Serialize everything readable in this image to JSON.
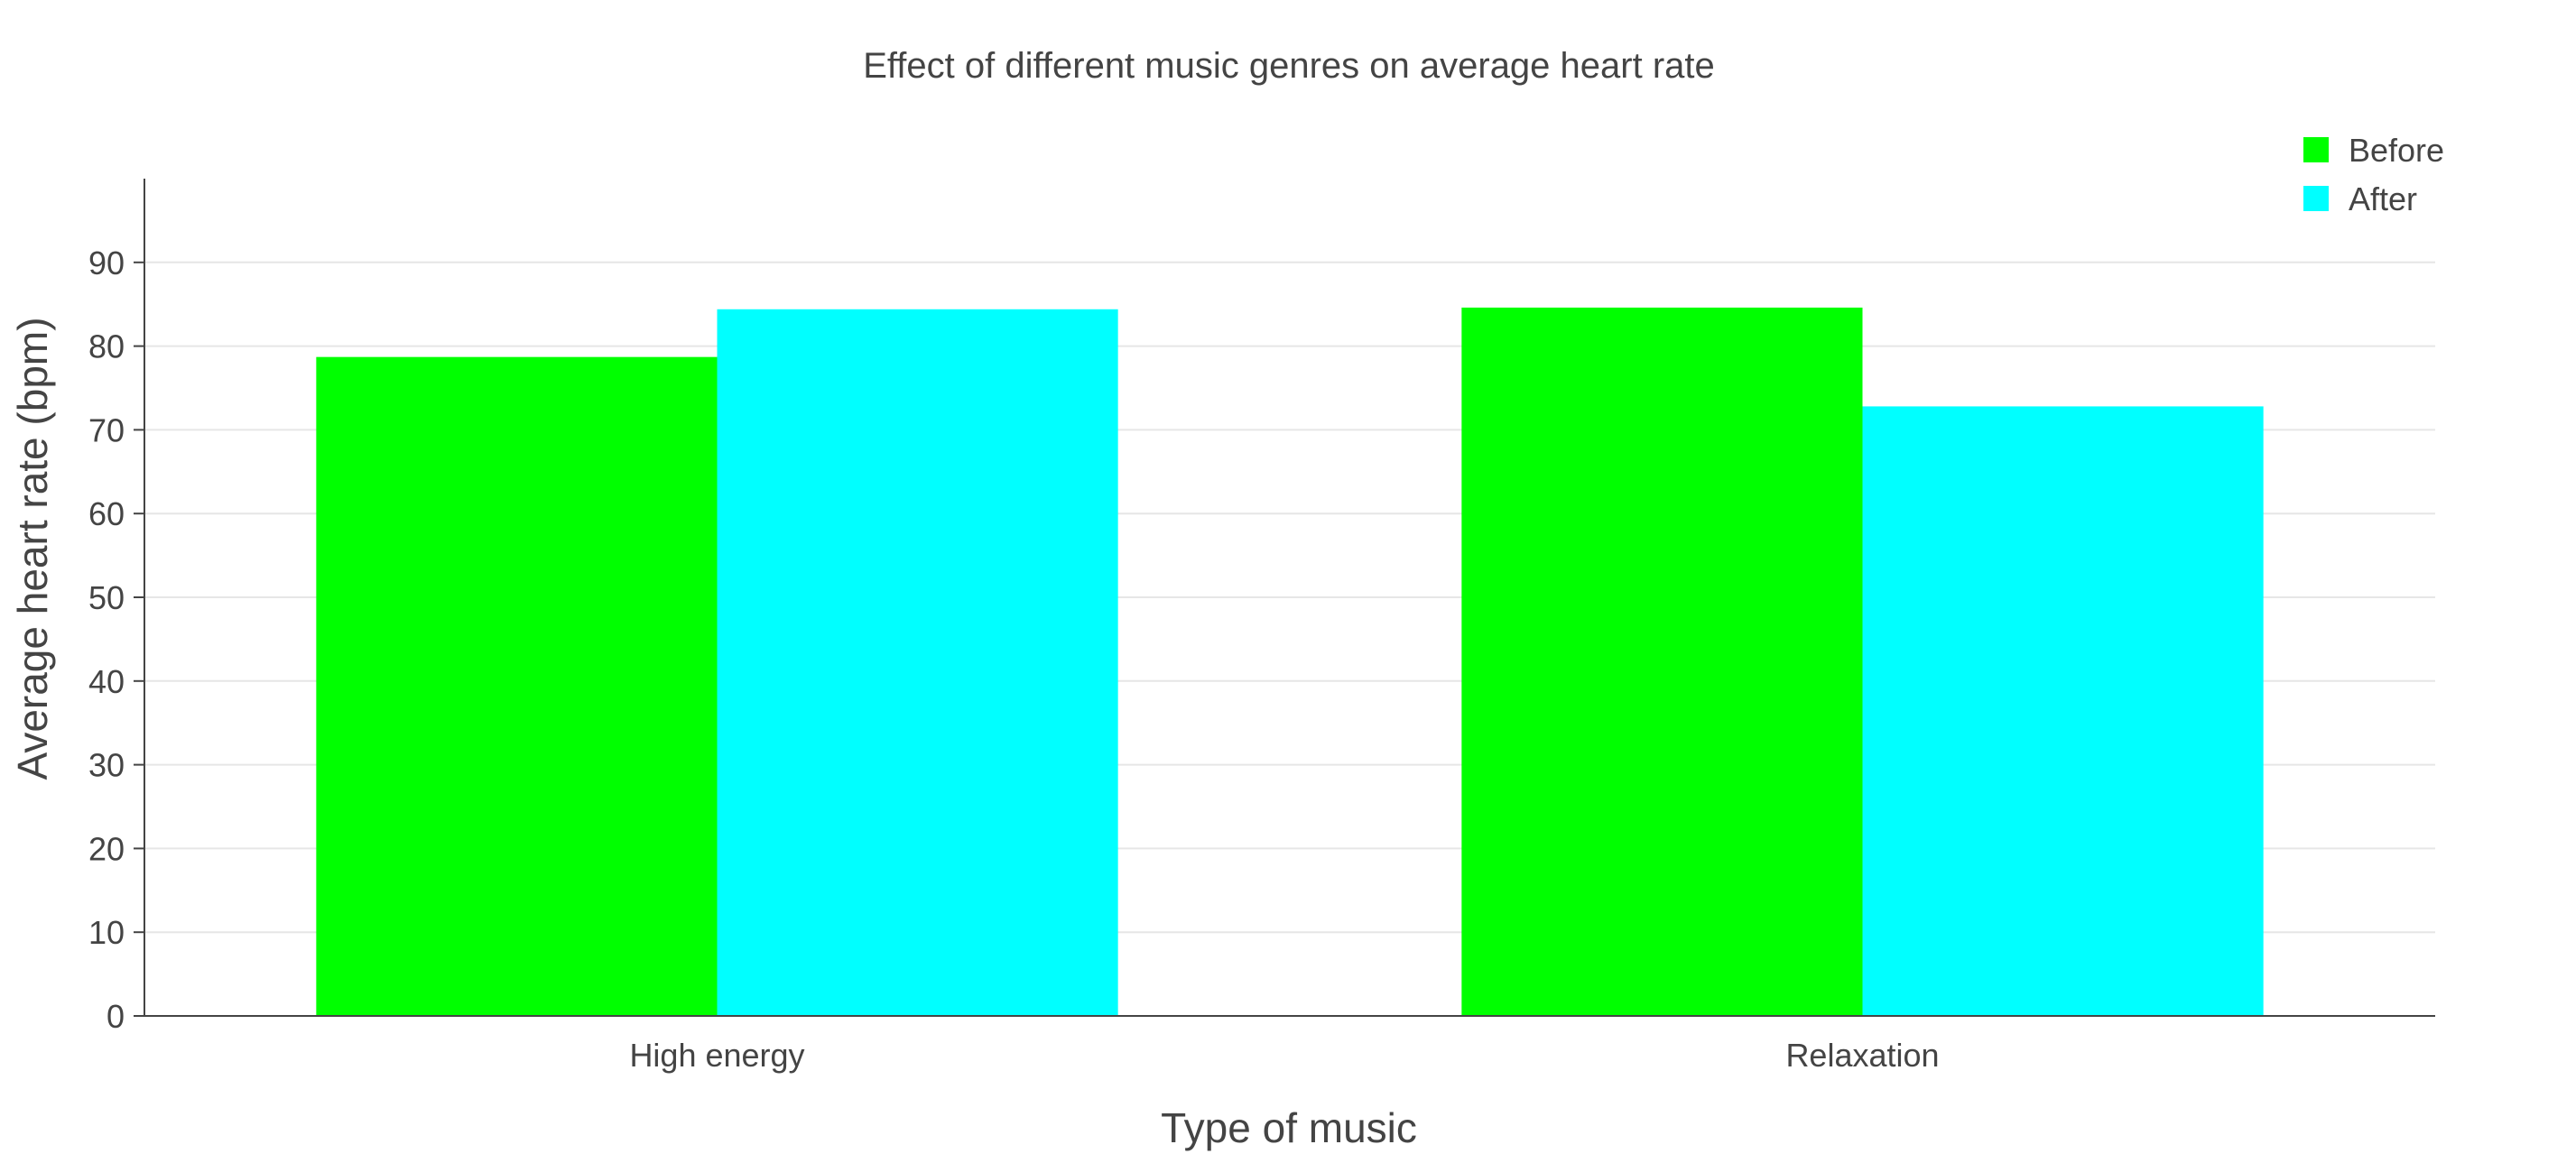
{
  "chart_data": {
    "type": "bar",
    "title": "Effect of different music genres on average heart rate",
    "xlabel": "Type of music",
    "ylabel": "Average heart rate (bpm)",
    "categories": [
      "High energy",
      "Relaxation"
    ],
    "series": [
      {
        "name": "Before",
        "color": "#00ff00",
        "values": [
          78.7,
          84.6
        ]
      },
      {
        "name": "After",
        "color": "#00ffff",
        "values": [
          84.4,
          72.8
        ]
      }
    ],
    "ylim": [
      0,
      100
    ],
    "yticks": [
      0,
      10,
      20,
      30,
      40,
      50,
      60,
      70,
      80,
      90
    ],
    "grid": true,
    "legend_position": "top-right"
  }
}
